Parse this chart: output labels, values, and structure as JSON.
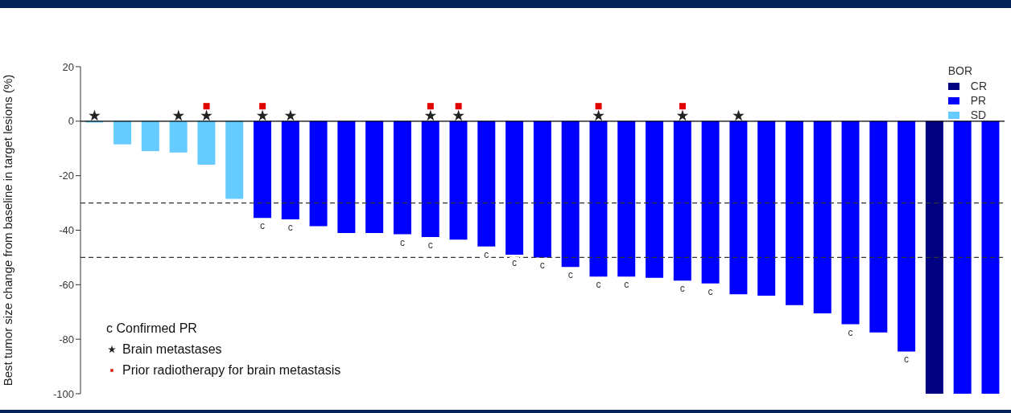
{
  "chart_data": {
    "type": "bar",
    "ylabel": "Best tumor size change from baseline in target lesions (%)",
    "legend_title": "BOR",
    "legend": "top right",
    "stacked": true,
    "tick_labels": "y",
    "categories": [
      null,
      null,
      null,
      null,
      null,
      null,
      null,
      null,
      null,
      null,
      null,
      null,
      null,
      null,
      null,
      null,
      null,
      null,
      null,
      null,
      null,
      null,
      null,
      null,
      null,
      null,
      null,
      null,
      null,
      null,
      null,
      null,
      null
    ],
    "series": [
      {
        "name": "CR",
        "color": "#000080",
        "values": [
          null,
          null,
          null,
          null,
          null,
          null,
          null,
          null,
          null,
          null,
          null,
          null,
          null,
          null,
          null,
          null,
          null,
          null,
          null,
          null,
          null,
          null,
          null,
          null,
          null,
          null,
          null,
          null,
          null,
          null,
          -100,
          null,
          null
        ]
      },
      {
        "name": "PR",
        "color": "#0000ff",
        "values": [
          null,
          null,
          null,
          null,
          null,
          null,
          -35.5,
          -36,
          -38.5,
          -41,
          -41,
          -41.5,
          -42.5,
          -43.5,
          -46,
          -49,
          -50,
          -53.5,
          -57,
          -57,
          -57.5,
          -58.5,
          -59.5,
          -63.5,
          -64,
          -67.5,
          -70.5,
          -74.5,
          -77.5,
          -84.5,
          null,
          -100,
          -100
        ],
        "value_labels": [
          null,
          null,
          null,
          null,
          null,
          null,
          "c",
          "c",
          null,
          null,
          null,
          "c",
          "c",
          null,
          "c",
          "c",
          "c",
          "c",
          "c",
          "c",
          null,
          "c",
          "c",
          null,
          null,
          null,
          null,
          "c",
          null,
          "c",
          null,
          null,
          null
        ]
      },
      {
        "name": "SD",
        "color": "#66ccff",
        "values": [
          -0.5,
          -8.5,
          -11,
          -11.5,
          -16,
          -28.5,
          null,
          null,
          null,
          null,
          null,
          null,
          null,
          null,
          null,
          null,
          null,
          null,
          null,
          null,
          null,
          null,
          null,
          null,
          null,
          null,
          null,
          null,
          null,
          null,
          null,
          null,
          null
        ]
      },
      {
        "name": "Brain metastases",
        "type": "scatter",
        "marker": "star",
        "color": "#222222",
        "values": [
          2,
          null,
          null,
          2,
          2,
          null,
          2,
          2,
          null,
          null,
          null,
          null,
          2,
          2,
          null,
          null,
          null,
          null,
          2,
          null,
          null,
          2,
          null,
          2,
          null,
          null,
          null,
          null,
          null,
          null,
          null,
          null,
          null
        ]
      },
      {
        "name": "Prior radiotherapy for brain metastasis",
        "type": "scatter",
        "marker": "square",
        "color": "#e00000",
        "values": [
          null,
          null,
          null,
          null,
          5.5,
          null,
          5.5,
          null,
          null,
          null,
          null,
          null,
          5.5,
          5.5,
          null,
          null,
          null,
          null,
          5.5,
          null,
          null,
          5.5,
          null,
          null,
          null,
          null,
          null,
          null,
          null,
          null,
          null,
          null,
          null
        ]
      }
    ],
    "ylim": [
      -100,
      20
    ],
    "yticks": [
      20,
      0,
      -20,
      -40,
      -60,
      -80,
      -100
    ],
    "ref_lines": [
      {
        "axis": "y",
        "value": 0,
        "line_style": "solid",
        "color": "#000000"
      },
      {
        "axis": "y",
        "value": -30,
        "line_style": "dashed",
        "color": "#333333"
      },
      {
        "axis": "y",
        "value": -50,
        "line_style": "dashed",
        "color": "#333333"
      }
    ],
    "annotations": [
      "c Confirmed PR"
    ]
  }
}
